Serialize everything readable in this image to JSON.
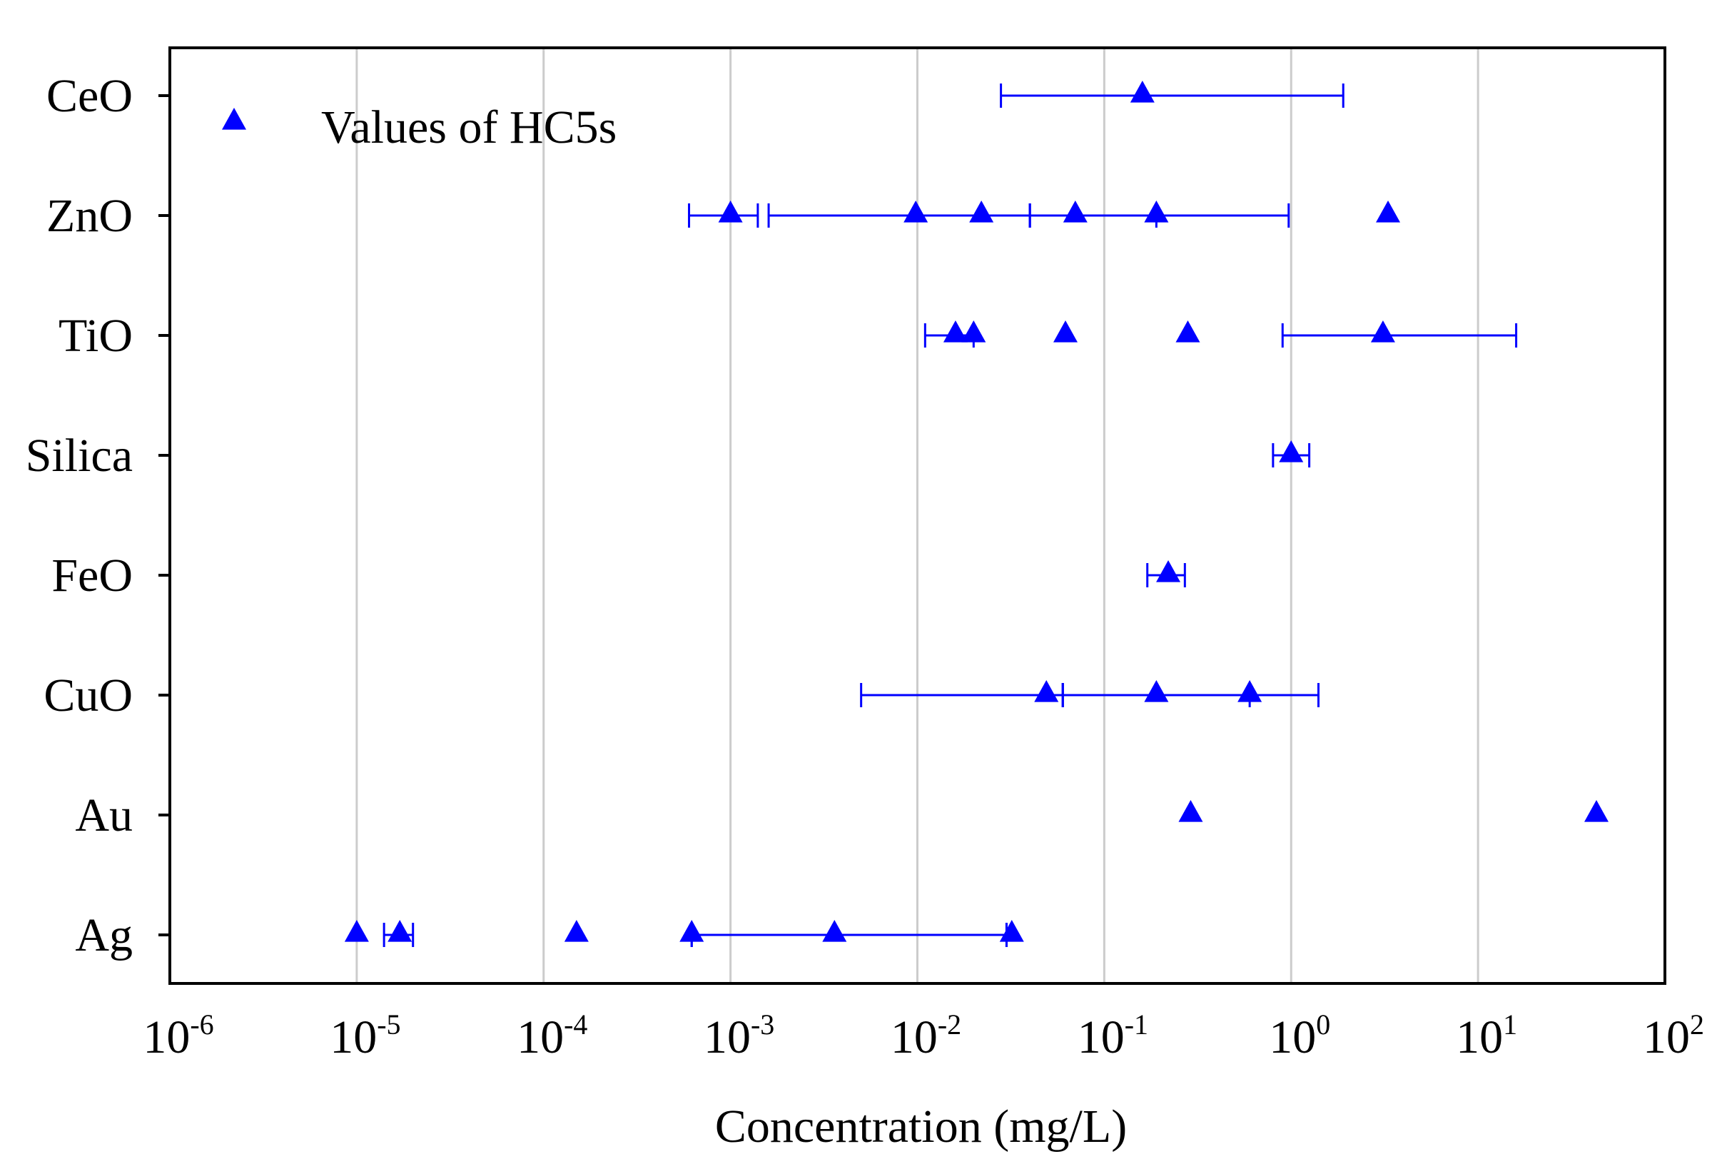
{
  "chart_data": {
    "type": "scatter",
    "title": "",
    "xlabel": "Concentration (mg/L)",
    "ylabel": "",
    "xscale": "log",
    "xlim": [
      1e-06,
      100
    ],
    "x_tick_labels": [
      {
        "base": "10",
        "exp": "-6"
      },
      {
        "base": "10",
        "exp": "-5"
      },
      {
        "base": "10",
        "exp": "-4"
      },
      {
        "base": "10",
        "exp": "-3"
      },
      {
        "base": "10",
        "exp": "-2"
      },
      {
        "base": "10",
        "exp": "-1"
      },
      {
        "base": "10",
        "exp": "0"
      },
      {
        "base": "10",
        "exp": "1"
      },
      {
        "base": "10",
        "exp": "2"
      }
    ],
    "grid": "vertical",
    "legend": {
      "position": "top-left",
      "entries": [
        "Values of HC5s"
      ]
    },
    "marker_color": "#0000ff",
    "categories": [
      "CeO",
      "ZnO",
      "TiO",
      "Silica",
      "FeO",
      "CuO",
      "Au",
      "Ag"
    ],
    "series": [
      {
        "name": "Values of HC5s",
        "points": [
          {
            "category": "CeO",
            "x": 0.16,
            "low": 0.028,
            "high": 1.9
          },
          {
            "category": "ZnO",
            "x": 0.001,
            "low": 0.0006,
            "high": 0.0014
          },
          {
            "category": "ZnO",
            "x": 0.0098,
            "low": 0.0016,
            "high": 0.04
          },
          {
            "category": "ZnO",
            "x": 0.022
          },
          {
            "category": "ZnO",
            "x": 0.07,
            "low": 0.04,
            "high": 0.19
          },
          {
            "category": "ZnO",
            "x": 0.19,
            "low": 0.04,
            "high": 0.97
          },
          {
            "category": "ZnO",
            "x": 3.3
          },
          {
            "category": "TiO",
            "x": 0.016,
            "low": 0.011,
            "high": 0.02
          },
          {
            "category": "TiO",
            "x": 0.02
          },
          {
            "category": "TiO",
            "x": 0.062
          },
          {
            "category": "TiO",
            "x": 0.28
          },
          {
            "category": "TiO",
            "x": 3.1,
            "low": 0.9,
            "high": 16
          },
          {
            "category": "Silica",
            "x": 1.0,
            "low": 0.8,
            "high": 1.25
          },
          {
            "category": "FeO",
            "x": 0.22,
            "low": 0.17,
            "high": 0.27
          },
          {
            "category": "CuO",
            "x": 0.049,
            "low": 0.005,
            "high": 0.06
          },
          {
            "category": "CuO",
            "x": 0.19,
            "low": 0.06,
            "high": 0.6
          },
          {
            "category": "CuO",
            "x": 0.6,
            "low": 0.06,
            "high": 1.4
          },
          {
            "category": "Au",
            "x": 0.29
          },
          {
            "category": "Au",
            "x": 43
          },
          {
            "category": "Ag",
            "x": 1e-05
          },
          {
            "category": "Ag",
            "x": 1.7e-05,
            "low": 1.4e-05,
            "high": 2e-05
          },
          {
            "category": "Ag",
            "x": 0.00015
          },
          {
            "category": "Ag",
            "x": 0.00062,
            "low": 0.00062,
            "high": 0.03
          },
          {
            "category": "Ag",
            "x": 0.0036
          },
          {
            "category": "Ag",
            "x": 0.032,
            "low": 0.00062,
            "high": 0.03
          }
        ]
      }
    ]
  }
}
